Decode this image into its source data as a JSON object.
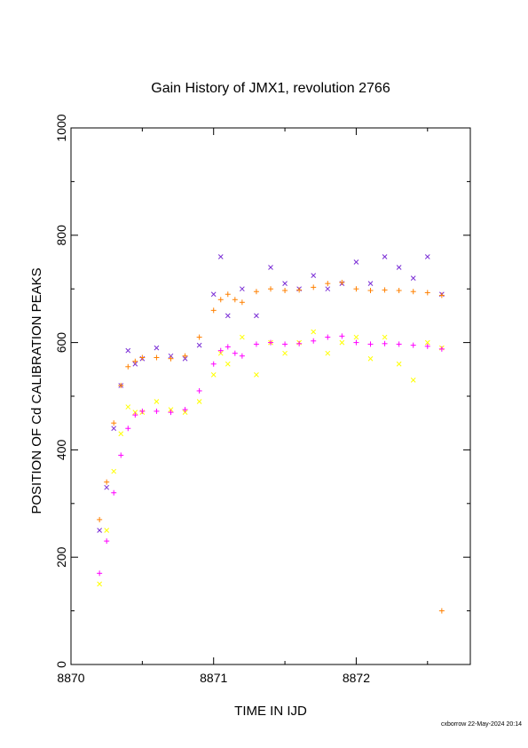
{
  "chart_data": {
    "type": "scatter",
    "title": "Gain History of JMX1, revolution 2766",
    "xlabel": "TIME IN IJD",
    "ylabel": "POSITION OF Cd CALIBRATION PEAKS",
    "xlim": [
      8870,
      8872.8
    ],
    "ylim": [
      0,
      1000
    ],
    "xticks": [
      8870,
      8871,
      8872
    ],
    "xtick_labels": [
      "8870",
      "8871",
      "8872"
    ],
    "yticks": [
      0,
      200,
      400,
      600,
      800,
      1000
    ],
    "ytick_labels": [
      "0",
      "200",
      "400",
      "600",
      "800",
      "1000"
    ],
    "grid": false,
    "legend": "none",
    "series": [
      {
        "key": "high_peak_raw",
        "marker": "x",
        "color": "#7b2fd6",
        "x": [
          8870.2,
          8870.25,
          8870.3,
          8870.35,
          8870.4,
          8870.45,
          8870.5,
          8870.6,
          8870.7,
          8870.8,
          8870.9,
          8871.0,
          8871.05,
          8871.1,
          8871.2,
          8871.3,
          8871.4,
          8871.5,
          8871.6,
          8871.7,
          8871.8,
          8871.9,
          8872.0,
          8872.1,
          8872.2,
          8872.3,
          8872.4,
          8872.5,
          8872.6
        ],
        "y": [
          250,
          330,
          440,
          520,
          585,
          560,
          570,
          590,
          575,
          570,
          595,
          690,
          760,
          650,
          700,
          650,
          740,
          710,
          700,
          725,
          700,
          710,
          750,
          710,
          760,
          740,
          720,
          760,
          690
        ]
      },
      {
        "key": "low_peak_raw",
        "marker": "x",
        "color": "#ffff00",
        "x": [
          8870.2,
          8870.25,
          8870.3,
          8870.35,
          8870.4,
          8870.45,
          8870.5,
          8870.6,
          8870.7,
          8870.8,
          8870.9,
          8871.0,
          8871.05,
          8871.1,
          8871.2,
          8871.3,
          8871.4,
          8871.5,
          8871.6,
          8871.7,
          8871.8,
          8871.9,
          8872.0,
          8872.1,
          8872.2,
          8872.3,
          8872.4,
          8872.5,
          8872.6
        ],
        "y": [
          150,
          250,
          360,
          430,
          480,
          470,
          470,
          490,
          475,
          470,
          490,
          540,
          580,
          560,
          610,
          540,
          600,
          580,
          600,
          620,
          580,
          600,
          610,
          570,
          610,
          560,
          530,
          600,
          590
        ]
      },
      {
        "key": "high_peak_fit",
        "marker": "+",
        "color": "#ff8000",
        "x": [
          8870.2,
          8870.25,
          8870.3,
          8870.35,
          8870.4,
          8870.45,
          8870.5,
          8870.6,
          8870.7,
          8870.8,
          8870.9,
          8871.0,
          8871.05,
          8871.1,
          8871.15,
          8871.2,
          8871.3,
          8871.4,
          8871.5,
          8871.6,
          8871.7,
          8871.8,
          8871.9,
          8872.0,
          8872.1,
          8872.2,
          8872.3,
          8872.4,
          8872.5,
          8872.6
        ],
        "y": [
          270,
          340,
          450,
          520,
          555,
          565,
          572,
          572,
          570,
          575,
          610,
          660,
          680,
          690,
          680,
          675,
          695,
          700,
          697,
          698,
          703,
          710,
          712,
          700,
          697,
          698,
          697,
          695,
          693,
          688
        ]
      },
      {
        "key": "low_peak_fit",
        "marker": "+",
        "color": "#ff00ff",
        "x": [
          8870.2,
          8870.25,
          8870.3,
          8870.35,
          8870.4,
          8870.45,
          8870.5,
          8870.6,
          8870.7,
          8870.8,
          8870.9,
          8871.0,
          8871.05,
          8871.1,
          8871.15,
          8871.2,
          8871.3,
          8871.4,
          8871.5,
          8871.6,
          8871.7,
          8871.8,
          8871.9,
          8872.0,
          8872.1,
          8872.2,
          8872.3,
          8872.4,
          8872.5,
          8872.6
        ],
        "y": [
          170,
          230,
          320,
          390,
          440,
          465,
          472,
          472,
          470,
          475,
          510,
          560,
          585,
          592,
          580,
          575,
          597,
          600,
          597,
          598,
          603,
          610,
          612,
          600,
          597,
          598,
          597,
          595,
          593,
          588
        ]
      },
      {
        "key": "isolated_point",
        "marker": "+",
        "color": "#ff8000",
        "x": [
          8872.6
        ],
        "y": [
          100
        ]
      }
    ]
  },
  "footer": {
    "stamp": "cxborrow 22-May-2024 20:14"
  }
}
